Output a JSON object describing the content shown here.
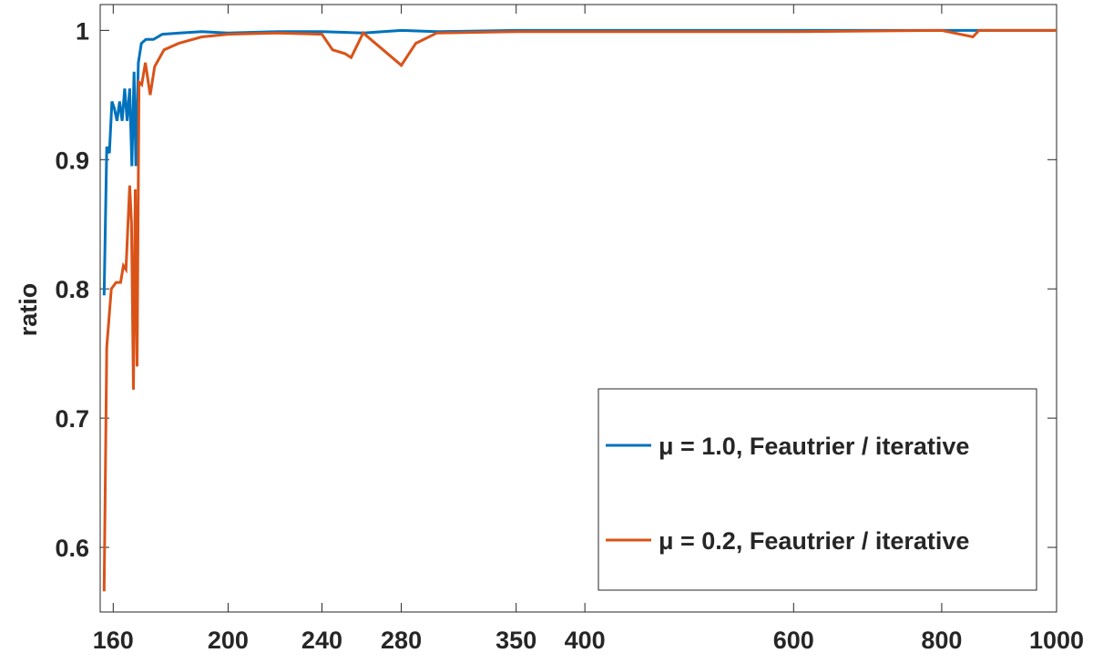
{
  "chart_data": {
    "type": "line",
    "ylabel": "ratio",
    "xscale": "log",
    "legend": "lower right",
    "xlim": [
      156,
      1000
    ],
    "ylim": [
      0.55,
      1.02
    ],
    "xticks": [
      160,
      200,
      240,
      280,
      350,
      400,
      600,
      800,
      1000
    ],
    "yticks": [
      0.6,
      0.7,
      0.8,
      0.9,
      1
    ],
    "series": [
      {
        "name": "μ = 1.0, Feautrier / iterative",
        "color": "#0072BD",
        "x": [
          157.2,
          158.0,
          158.8,
          159.6,
          160.3,
          161.2,
          162.0,
          162.8,
          163.6,
          164.4,
          165.2,
          165.9,
          166.6,
          167.2,
          168.0,
          169.0,
          170.5,
          173,
          176,
          182,
          190,
          200,
          220,
          240,
          260,
          280,
          300,
          350,
          400,
          500,
          700,
          1000
        ],
        "values": [
          0.795,
          0.91,
          0.905,
          0.945,
          0.94,
          0.93,
          0.945,
          0.93,
          0.955,
          0.93,
          0.955,
          0.895,
          0.968,
          0.895,
          0.975,
          0.99,
          0.993,
          0.993,
          0.997,
          0.998,
          0.999,
          0.998,
          0.999,
          0.999,
          0.998,
          1.0,
          0.999,
          1.0,
          1.0,
          1.0,
          1.0,
          1.0
        ]
      },
      {
        "name": "μ = 0.2, Feautrier / iterative",
        "color": "#D95319",
        "x": [
          157.2,
          158.0,
          159.4,
          160.9,
          162.3,
          163.2,
          164.0,
          165.2,
          165.8,
          166.4,
          167.0,
          167.6,
          168.2,
          169.1,
          170.3,
          171.9,
          173.4,
          176.6,
          181.7,
          190,
          200,
          220,
          240,
          245,
          251,
          254,
          260,
          280,
          288,
          300,
          350,
          400,
          600,
          800,
          850,
          860,
          1000
        ],
        "values": [
          0.566,
          0.755,
          0.8,
          0.805,
          0.805,
          0.818,
          0.815,
          0.88,
          0.85,
          0.722,
          0.877,
          0.74,
          0.96,
          0.958,
          0.975,
          0.95,
          0.972,
          0.985,
          0.99,
          0.995,
          0.997,
          0.998,
          0.997,
          0.985,
          0.982,
          0.979,
          0.998,
          0.973,
          0.99,
          0.998,
          0.999,
          0.999,
          0.999,
          1.0,
          0.995,
          1.0,
          1.0
        ]
      }
    ]
  }
}
